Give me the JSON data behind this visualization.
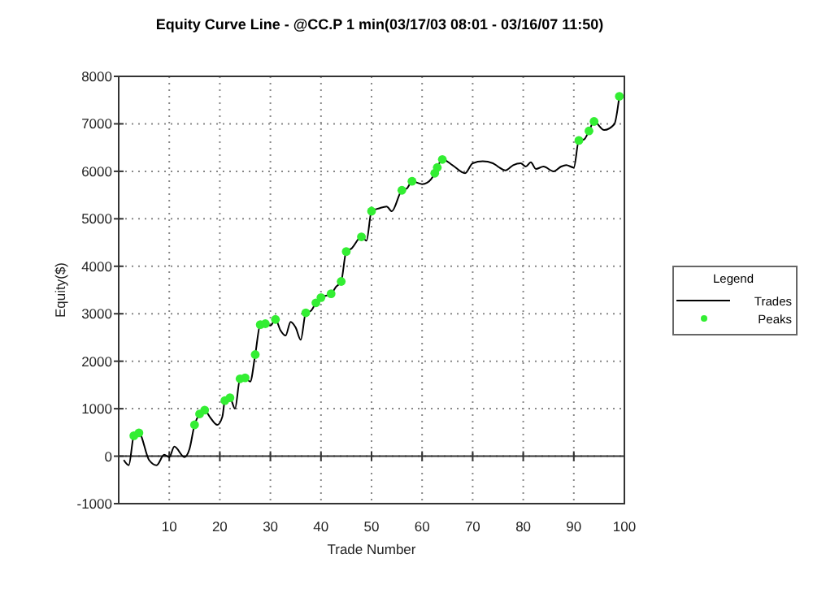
{
  "chart_data": {
    "type": "line",
    "title": "Equity Curve Line - @CC.P 1 min(03/17/03 08:01 - 03/16/07 11:50)",
    "xlabel": "Trade Number",
    "ylabel": "Equity($)",
    "legend_title": "Legend",
    "legend": "right",
    "grid": true,
    "line_style": "solid",
    "xlim": [
      0,
      100
    ],
    "xticks": [
      10,
      20,
      30,
      40,
      50,
      60,
      70,
      80,
      90,
      100
    ],
    "ylim": [
      -1000,
      8000
    ],
    "yticks": [
      -1000,
      0,
      1000,
      2000,
      3000,
      4000,
      5000,
      6000,
      7000,
      8000
    ],
    "series": [
      {
        "name": "Trades",
        "color": "#000000",
        "x": [
          1,
          2,
          3,
          4,
          6,
          7.5,
          9,
          10,
          11,
          13,
          14,
          15,
          16,
          17,
          18,
          19.5,
          20.5,
          21,
          22,
          23,
          24,
          25,
          26,
          27,
          28,
          29,
          30,
          31,
          32,
          33,
          34,
          35,
          36,
          37,
          38,
          39,
          40,
          42,
          43,
          44,
          45,
          46,
          48,
          49,
          50,
          51.5,
          53,
          54,
          56,
          57,
          58,
          60,
          61,
          62.5,
          63,
          64,
          66,
          68.5,
          70,
          72,
          74,
          75,
          76.5,
          78,
          79.5,
          80.5,
          81.5,
          82.5,
          84,
          86,
          87.5,
          88.5,
          90,
          91,
          92,
          93,
          94,
          96,
          98,
          99
        ],
        "values": [
          -80,
          -190,
          430,
          490,
          -80,
          -190,
          30,
          -20,
          200,
          -20,
          150,
          660,
          890,
          970,
          830,
          660,
          830,
          1170,
          1230,
          1000,
          1630,
          1650,
          1570,
          2140,
          2770,
          2790,
          2750,
          2880,
          2650,
          2540,
          2830,
          2710,
          2450,
          3020,
          3060,
          3230,
          3340,
          3420,
          3570,
          3680,
          4310,
          4370,
          4620,
          4540,
          5160,
          5220,
          5260,
          5160,
          5600,
          5640,
          5790,
          5730,
          5760,
          5960,
          6080,
          6250,
          6130,
          5960,
          6170,
          6210,
          6170,
          6100,
          6020,
          6130,
          6170,
          6100,
          6190,
          6050,
          6100,
          6000,
          6100,
          6130,
          6080,
          6650,
          6670,
          6850,
          7050,
          6870,
          6990,
          7580
        ]
      },
      {
        "name": "Peaks",
        "type": "scatter",
        "marker": "circle",
        "color": "#33ee33",
        "x": [
          3,
          4,
          15,
          16,
          17,
          21,
          22,
          24,
          25,
          27,
          28,
          29,
          31,
          37,
          39,
          40,
          42,
          44,
          45,
          48,
          50,
          56,
          58,
          62.5,
          63,
          64,
          91,
          93,
          94,
          99
        ],
        "values": [
          430,
          490,
          660,
          890,
          970,
          1170,
          1230,
          1630,
          1650,
          2140,
          2770,
          2790,
          2880,
          3020,
          3230,
          3340,
          3420,
          3680,
          4310,
          4620,
          5160,
          5600,
          5790,
          5960,
          6080,
          6250,
          6650,
          6850,
          7050,
          7580
        ]
      }
    ]
  }
}
